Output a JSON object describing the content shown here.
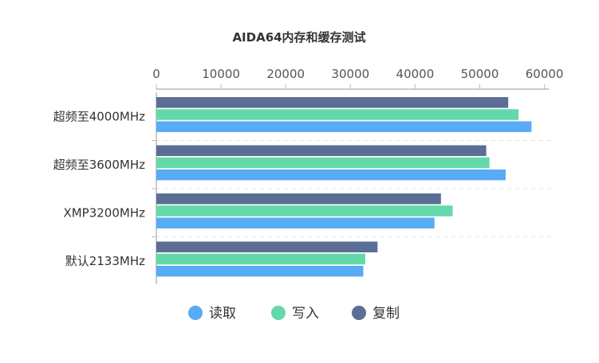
{
  "chart_data": {
    "type": "bar",
    "orientation": "horizontal",
    "title": "AIDA64内存和缓存测试",
    "categories": [
      "超频至4000MHz",
      "超频至3600MHz",
      "XMP3200MHz",
      "默认2133MHz"
    ],
    "series": [
      {
        "name": "读取",
        "color": "#58abf4",
        "values": [
          58000,
          54000,
          43000,
          32000
        ]
      },
      {
        "name": "写入",
        "color": "#63d9a9",
        "values": [
          56000,
          51500,
          45800,
          32300
        ]
      },
      {
        "name": "复制",
        "color": "#5b6e96",
        "values": [
          54400,
          51000,
          44000,
          34200
        ]
      }
    ],
    "xlim": [
      0,
      60000
    ],
    "xticks": [
      0,
      10000,
      20000,
      30000,
      40000,
      50000,
      60000
    ],
    "xticks_labels": [
      "0",
      "10000",
      "20000",
      "30000",
      "40000",
      "50000",
      "60000"
    ],
    "xaxis_position": "top",
    "grid": "dashed separators between categories",
    "legend_position": "bottom"
  }
}
